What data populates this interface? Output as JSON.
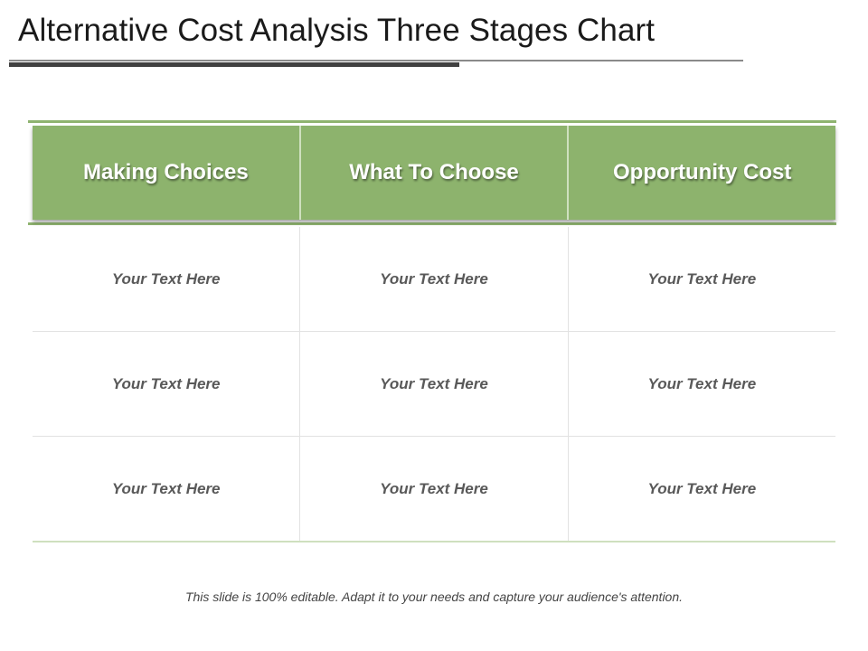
{
  "title": "Alternative Cost Analysis Three Stages Chart",
  "table": {
    "headers": [
      "Making Choices",
      "What To Choose",
      "Opportunity Cost"
    ],
    "rows": [
      [
        "Your Text Here",
        "Your Text Here",
        "Your Text Here"
      ],
      [
        "Your Text Here",
        "Your Text Here",
        "Your Text Here"
      ],
      [
        "Your Text Here",
        "Your Text Here",
        "Your Text Here"
      ]
    ]
  },
  "footer": "This slide is 100% editable. Adapt it to your needs and capture your audience's attention.",
  "colors": {
    "header_green": "#8db36d",
    "title_text": "#1a1a1a",
    "cell_text": "#595959"
  }
}
